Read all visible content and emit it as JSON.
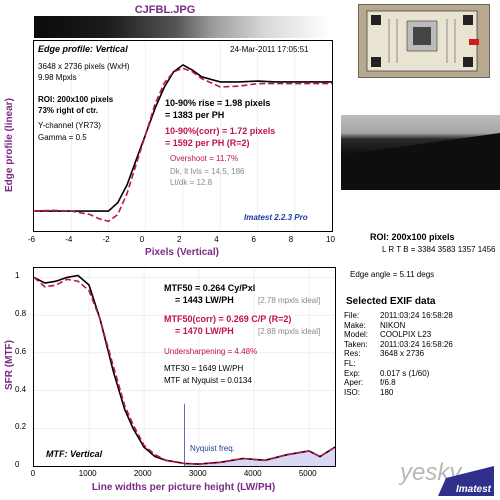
{
  "file_title": "CJFBL.JPG",
  "edge_panel": {
    "title": "Edge profile: Vertical",
    "date": "24-Mar-2011 17:05:51",
    "dims": "3648 x 2736 pixels (WxH)",
    "mpxls": "9.98 Mpxls",
    "roi": "ROI: 200x100 pixels",
    "pct_right": "73% right of ctr.",
    "channel": "Y-channel  (YR73)",
    "gamma": "Gamma = 0.5",
    "rise": "10-90% rise = 1.98 pixels",
    "rise_ph": "= 1383 per PH",
    "rise_corr": "10-90%(corr) = 1.72 pixels",
    "rise_corr_ph": "= 1592 per PH   (R=2)",
    "overshoot": "Overshoot = 11.7%",
    "dk_lt": "Dk, lt lvls = 14.5, 186",
    "ltdk": "Lt/dk = 12.8",
    "imatest": "Imatest 2.2.3 Pro",
    "ylabel": "Edge profile (linear)",
    "xlabel": "Pixels (Vertical)",
    "xticks": [
      "-6",
      "-4",
      "-2",
      "0",
      "2",
      "4",
      "6",
      "8",
      "10"
    ]
  },
  "mtf_panel": {
    "mtf50": "MTF50 = 0.264 Cy/Pxl",
    "mtf50_lw": "= 1443 LW/PH",
    "mtf50_ideal": "[2.78 mpxls ideal]",
    "mtf50_corr": "MTF50(corr) = 0.269 C/P  (R=2)",
    "mtf50_corr_lw": "= 1470 LW/PH",
    "mtf50_corr_ideal": "[2.88 mpxls ideal]",
    "undersharp": "Undersharpening = 4.48%",
    "mtf30": "MTF30 = 1649 LW/PH",
    "nyquist_mtf": "MTF at Nyquist = 0.0134",
    "nyquist_label": "Nyquist freq.",
    "title": "MTF: Vertical",
    "ylabel": "SFR (MTF)",
    "xlabel": "Line widths per picture height (LW/PH)",
    "yticks": [
      "1",
      "0.8",
      "0.6",
      "0.4",
      "0.2",
      "0"
    ],
    "xticks": [
      "0",
      "1000",
      "2000",
      "3000",
      "4000",
      "5000"
    ]
  },
  "side": {
    "roi": "ROI: 200x100 pixels",
    "lrtb": "L R T B = 3384 3583  1357 1456",
    "edge_angle": "Edge angle = 5.11 degs",
    "exif_title": "Selected EXIF data",
    "exif": [
      {
        "k": "File:",
        "v": "2011:03:24 16:58:28"
      },
      {
        "k": "Make:",
        "v": "NIKON"
      },
      {
        "k": "Model:",
        "v": "COOLPIX L23"
      },
      {
        "k": "Taken:",
        "v": "2011:03:24 16:58:26"
      },
      {
        "k": "Res:",
        "v": "3648 x 2736"
      },
      {
        "k": "FL:",
        "v": ""
      },
      {
        "k": "Exp:",
        "v": "0.017 s   (1/60)"
      },
      {
        "k": "Aper:",
        "v": "f/6.8"
      },
      {
        "k": "ISO:",
        "v": "180"
      }
    ],
    "watermark": "yesky",
    "logo_text": "Imatest"
  },
  "colors": {
    "label": "#7b2a86",
    "red_text": "#c0124b",
    "measured": "#000000",
    "corrected": "#c0124b",
    "blue": "#1a3c9c"
  },
  "chart_data": [
    {
      "type": "line",
      "title": "Edge profile: Vertical",
      "xlabel": "Pixels (Vertical)",
      "ylabel": "Edge profile (linear)",
      "xlim": [
        -6,
        10
      ],
      "series": [
        {
          "x": [
            -6,
            -5,
            -4,
            -3,
            -2.5,
            -2,
            -1.5,
            -1,
            -0.5,
            0,
            0.5,
            1,
            1.5,
            2,
            2.5,
            3,
            4,
            5,
            6,
            7,
            8,
            9,
            10
          ],
          "values": [
            14,
            14,
            14,
            14,
            14,
            14,
            24,
            45,
            75,
            105,
            135,
            160,
            178,
            186,
            180,
            172,
            166,
            166,
            167,
            166,
            166,
            166,
            166
          ]
        },
        {
          "x": [
            -6,
            -5,
            -4,
            -3,
            -2.5,
            -2,
            -1.5,
            -1,
            -0.5,
            0,
            0.5,
            1,
            1.5,
            2,
            2.5,
            3,
            4,
            5,
            6,
            7,
            8,
            9,
            10
          ],
          "values": [
            14,
            15,
            14,
            10,
            5,
            2,
            10,
            35,
            70,
            105,
            140,
            165,
            178,
            182,
            178,
            170,
            160,
            161,
            164,
            164,
            164,
            164,
            164
          ]
        }
      ]
    },
    {
      "type": "line",
      "title": "MTF: Vertical",
      "xlabel": "Line widths per picture height (LW/PH)",
      "ylabel": "SFR (MTF)",
      "xlim": [
        0,
        5472
      ],
      "ylim": [
        0,
        1.05
      ],
      "series": [
        {
          "x": [
            0,
            200,
            400,
            600,
            800,
            1000,
            1200,
            1443,
            1649,
            1800,
            2000,
            2200,
            2400,
            2600,
            2736,
            3000,
            3400,
            3800,
            4200,
            4600,
            5000,
            5200,
            5472
          ],
          "values": [
            1,
            0.97,
            0.98,
            1.0,
            1.01,
            0.96,
            0.78,
            0.5,
            0.3,
            0.2,
            0.1,
            0.05,
            0.03,
            0.02,
            0.013,
            0.01,
            0.02,
            0.04,
            0.03,
            0.06,
            0.08,
            0.05,
            0.1
          ]
        },
        {
          "x": [
            0,
            200,
            400,
            600,
            800,
            1000,
            1200,
            1470,
            1649,
            1800,
            2000,
            2200,
            2400,
            2600,
            2736,
            3000,
            3400,
            3800,
            4200,
            4600,
            5000,
            5200,
            5472
          ],
          "values": [
            1,
            0.95,
            0.96,
            0.99,
            0.98,
            0.93,
            0.78,
            0.5,
            0.32,
            0.22,
            0.11,
            0.06,
            0.03,
            0.02,
            0.013,
            0.01,
            0.02,
            0.04,
            0.03,
            0.06,
            0.08,
            0.05,
            0.1
          ]
        }
      ],
      "annotations": [
        {
          "x": 2736,
          "label": "Nyquist freq."
        }
      ]
    }
  ]
}
